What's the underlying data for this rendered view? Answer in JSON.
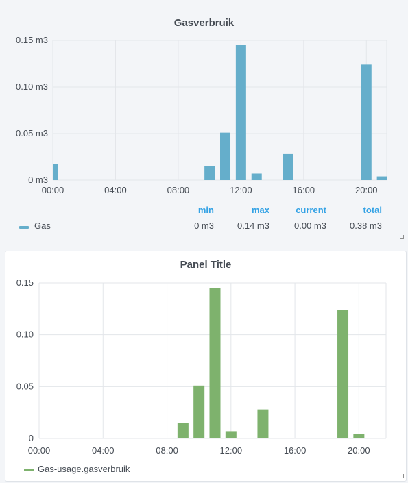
{
  "colors": {
    "gas_series": "#65aecb",
    "usage_series": "#7eb26d",
    "legend_header": "#33a2e5",
    "grid": "#e3e6ea"
  },
  "panels": [
    {
      "title": "Gasverbruik",
      "legend": {
        "headers": {
          "min": "min",
          "max": "max",
          "current": "current",
          "total": "total"
        },
        "rows": [
          {
            "name": "Gas",
            "min": "0 m3",
            "max": "0.14 m3",
            "current": "0.00 m3",
            "total": "0.38 m3"
          }
        ]
      }
    },
    {
      "title": "Panel Title",
      "legend": {
        "rows": [
          {
            "name": "Gas-usage.gasverbruik"
          }
        ]
      }
    }
  ],
  "chart_data": [
    {
      "type": "bar",
      "title": "Gasverbruik",
      "x_unit": "hour of day",
      "xlim": [
        0,
        21.3
      ],
      "x_ticks": [
        {
          "v": 0,
          "label": "00:00"
        },
        {
          "v": 4,
          "label": "04:00"
        },
        {
          "v": 8,
          "label": "08:00"
        },
        {
          "v": 12,
          "label": "12:00"
        },
        {
          "v": 16,
          "label": "16:00"
        },
        {
          "v": 20,
          "label": "20:00"
        }
      ],
      "ylim": [
        0,
        0.15
      ],
      "y_ticks": [
        {
          "v": 0,
          "label": "0 m3"
        },
        {
          "v": 0.05,
          "label": "0.05 m3"
        },
        {
          "v": 0.1,
          "label": "0.10 m3"
        },
        {
          "v": 0.15,
          "label": "0.15 m3"
        }
      ],
      "grid": true,
      "series": [
        {
          "name": "Gas",
          "x": [
            0,
            10,
            11,
            12,
            13,
            15,
            20,
            21
          ],
          "values": [
            0.017,
            0.015,
            0.051,
            0.145,
            0.007,
            0.028,
            0.124,
            0.004
          ]
        }
      ]
    },
    {
      "type": "bar",
      "title": "Panel Title",
      "x_unit": "hour of day",
      "xlim": [
        0,
        21.7
      ],
      "x_ticks": [
        {
          "v": 0,
          "label": "00:00"
        },
        {
          "v": 4,
          "label": "04:00"
        },
        {
          "v": 8,
          "label": "08:00"
        },
        {
          "v": 12,
          "label": "12:00"
        },
        {
          "v": 16,
          "label": "16:00"
        },
        {
          "v": 20,
          "label": "20:00"
        }
      ],
      "ylim": [
        0,
        0.15
      ],
      "y_ticks": [
        {
          "v": 0,
          "label": "0"
        },
        {
          "v": 0.05,
          "label": "0.05"
        },
        {
          "v": 0.1,
          "label": "0.10"
        },
        {
          "v": 0.15,
          "label": "0.15"
        }
      ],
      "grid": true,
      "series": [
        {
          "name": "Gas-usage.gasverbruik",
          "x": [
            9,
            10,
            11,
            12,
            14,
            19,
            20
          ],
          "values": [
            0.015,
            0.051,
            0.145,
            0.007,
            0.028,
            0.124,
            0.004
          ]
        }
      ]
    }
  ]
}
